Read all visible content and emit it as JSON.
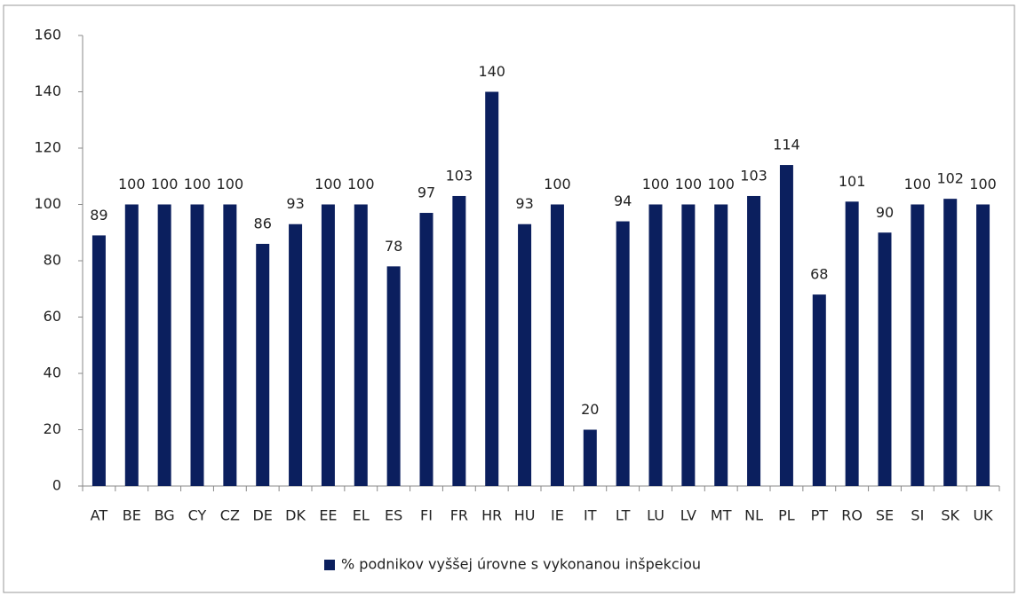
{
  "chart_data": {
    "type": "bar",
    "categories": [
      "AT",
      "BE",
      "BG",
      "CY",
      "CZ",
      "DE",
      "DK",
      "EE",
      "EL",
      "ES",
      "FI",
      "FR",
      "HR",
      "HU",
      "IE",
      "IT",
      "LT",
      "LU",
      "LV",
      "MT",
      "NL",
      "PL",
      "PT",
      "RO",
      "SE",
      "SI",
      "SK",
      "UK"
    ],
    "series": [
      {
        "name": "% podnikov vyššej úrovne s vykonanou inšpekciou",
        "color": "#0b1f5e",
        "values": [
          89,
          100,
          100,
          100,
          100,
          86,
          93,
          100,
          100,
          78,
          97,
          103,
          140,
          93,
          100,
          20,
          94,
          100,
          100,
          100,
          103,
          114,
          68,
          101,
          90,
          100,
          102,
          100
        ]
      }
    ],
    "ylim": [
      0,
      160
    ],
    "yticks": [
      0,
      20,
      40,
      60,
      80,
      100,
      120,
      140,
      160
    ],
    "grid": false,
    "legend": "bottom"
  }
}
